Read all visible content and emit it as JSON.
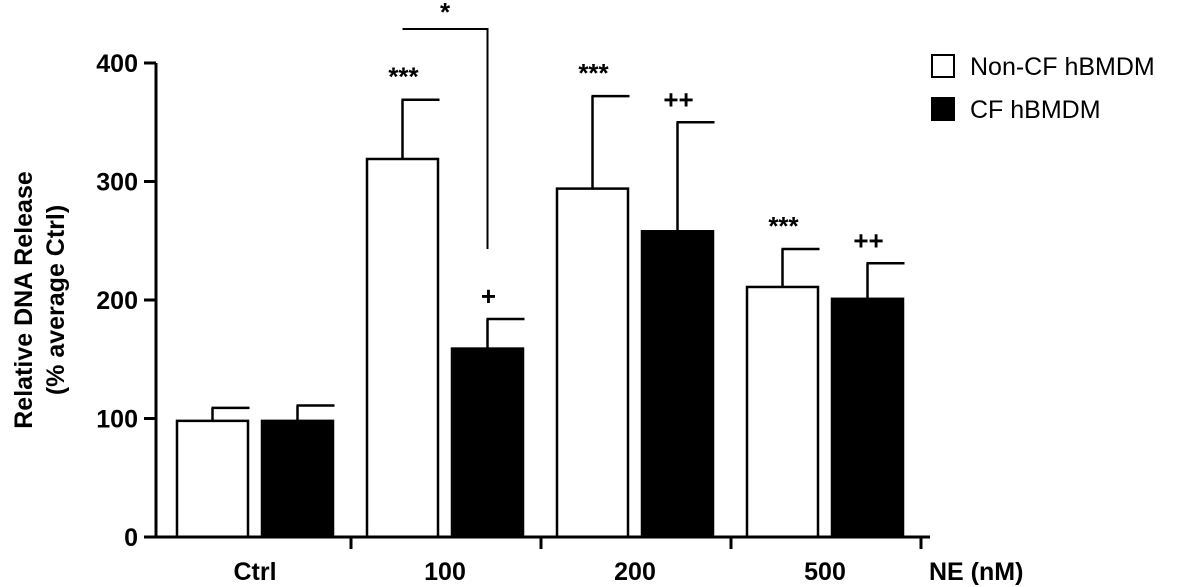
{
  "chart_data": {
    "type": "bar",
    "title": "",
    "ylabel_line1": "Relative DNA Release",
    "ylabel_line2": "(% average Ctrl)",
    "xlabel": "NE (nM)",
    "categories": [
      "Ctrl",
      "100",
      "200",
      "500"
    ],
    "ylim": [
      0,
      400
    ],
    "yticks": [
      0,
      100,
      200,
      300,
      400
    ],
    "grid": false,
    "legend_position": "top-right",
    "series": [
      {
        "name": "Non-CF hBMDM",
        "fill": "#ffffff",
        "values": [
          98,
          319,
          294,
          211
        ],
        "errors": [
          11,
          50,
          78,
          32
        ],
        "annotations": [
          "",
          "***",
          "***",
          "***"
        ]
      },
      {
        "name": "CF hBMDM",
        "fill": "#000000",
        "values": [
          98,
          159,
          258,
          201
        ],
        "errors": [
          13,
          25,
          92,
          30
        ],
        "annotations": [
          "",
          "+",
          "++",
          "++"
        ]
      }
    ],
    "comparisons": [
      {
        "label": "*",
        "category_index": 1,
        "from_series": 0,
        "to_series": 1
      }
    ]
  }
}
